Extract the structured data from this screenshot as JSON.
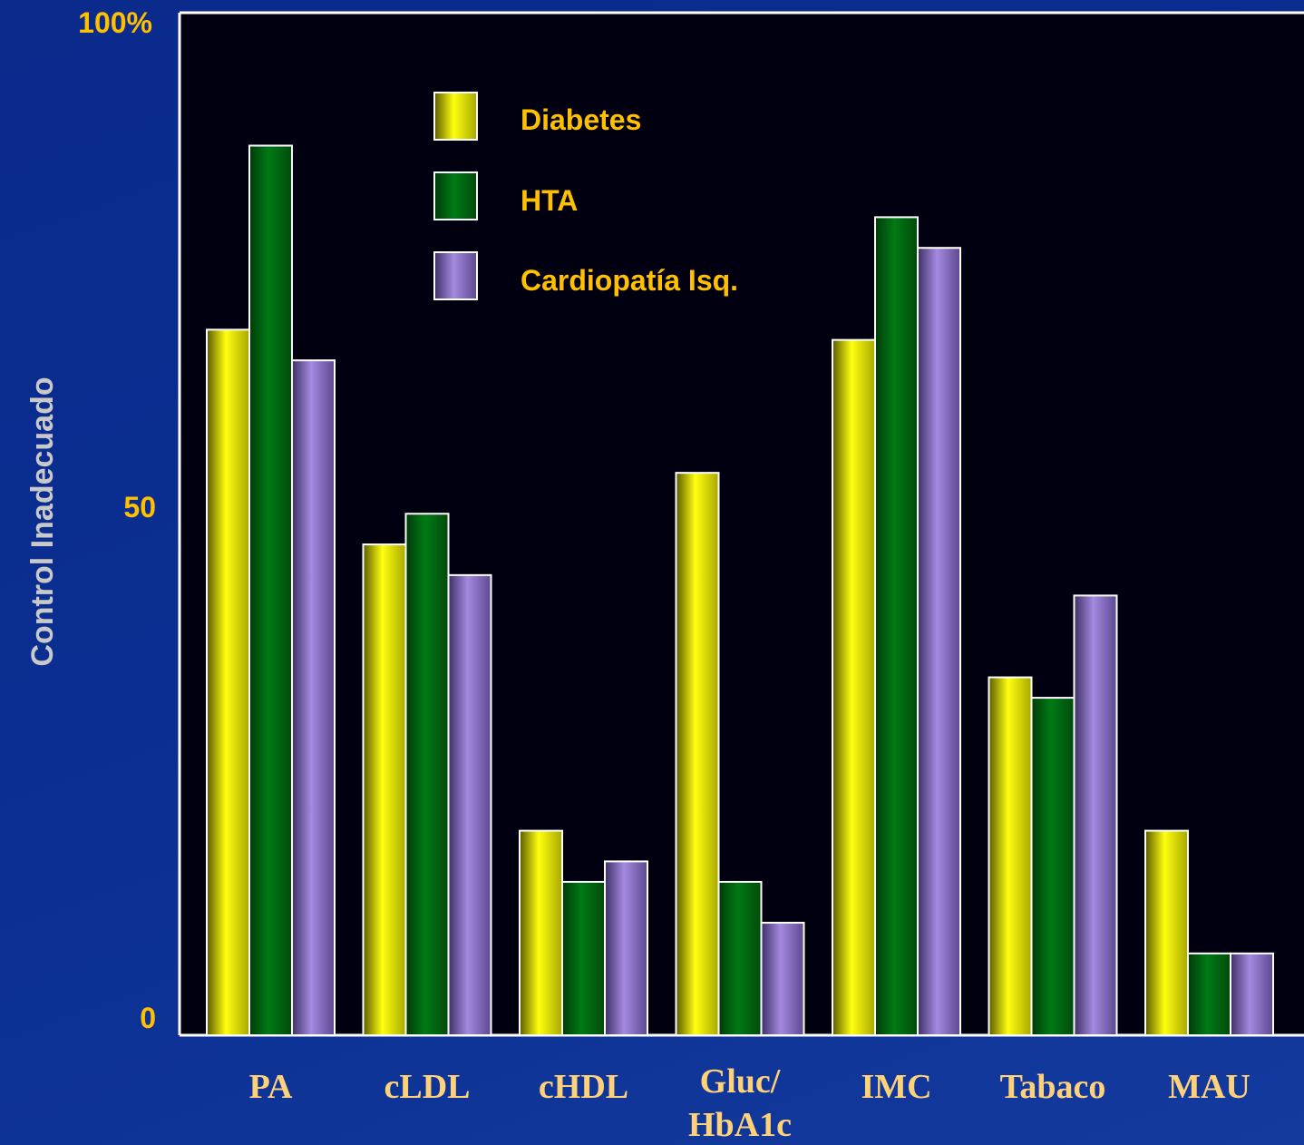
{
  "chart_data": {
    "type": "bar",
    "ylabel": "Control Inadecuado",
    "ylim": [
      0,
      100
    ],
    "y_ticks": [
      "0",
      "50",
      "100%"
    ],
    "categories": [
      [
        "PA"
      ],
      [
        "cLDL"
      ],
      [
        "cHDL"
      ],
      [
        "Gluc/",
        "HbA1c"
      ],
      [
        "IMC"
      ],
      [
        "Tabaco"
      ],
      [
        "MAU"
      ]
    ],
    "series": [
      {
        "name": "Diabetes",
        "values": [
          69,
          48,
          20,
          55,
          68,
          35,
          20
        ],
        "color": "#e8e800"
      },
      {
        "name": "HTA",
        "values": [
          87,
          51,
          15,
          15,
          80,
          33,
          8
        ],
        "color": "#006b10"
      },
      {
        "name": "Cardiopatía Isq.",
        "values": [
          66,
          45,
          17,
          11,
          77,
          43,
          8
        ],
        "color": "#8a6fc8"
      }
    ],
    "legend": "top-center",
    "grid": false
  }
}
